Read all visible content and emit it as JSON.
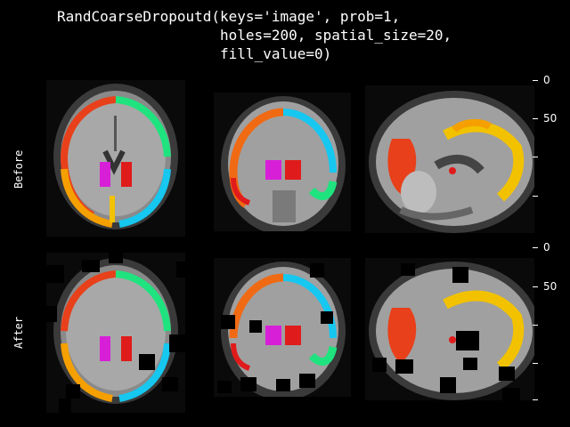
{
  "title": "RandCoarseDropoutd(keys='image', prob=1,\n                   holes=200, spatial_size=20,\n                   fill_value=0)",
  "rows": [
    {
      "label": "Before"
    },
    {
      "label": "After"
    }
  ],
  "axis_ticks": {
    "top": [
      "0",
      "50",
      "",
      ""
    ],
    "bottom": [
      "0",
      "50",
      "",
      ""
    ]
  },
  "colors": {
    "background": "#000000",
    "label_red": "#e01b1b",
    "label_orange": "#f06a14",
    "label_yellow": "#f2c200",
    "label_green": "#1fe37e",
    "label_cyan": "#16c7f0",
    "label_magenta": "#d81fd8"
  }
}
